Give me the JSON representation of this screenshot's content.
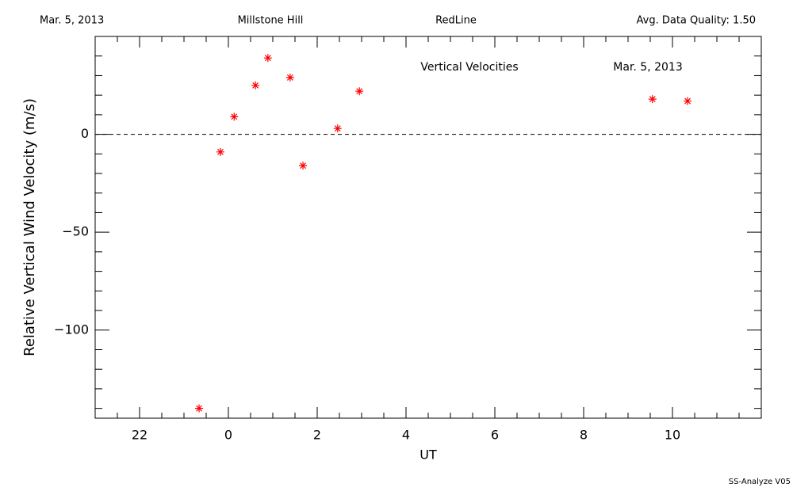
{
  "chart_data": {
    "type": "scatter",
    "header": [
      "Mar. 5, 2013",
      "Millstone Hill",
      "RedLine",
      "Avg. Data Quality: 1.50"
    ],
    "annotations": [
      "Vertical Velocities",
      "Mar. 5, 2013"
    ],
    "xlabel": "UT",
    "ylabel": "Relative Vertical Wind Velocity (m/s)",
    "footer": "SS-Analyze V05",
    "x": [
      -0.66,
      -0.18,
      0.13,
      0.61,
      0.89,
      1.39,
      1.68,
      2.46,
      2.95,
      9.55,
      10.34
    ],
    "values": [
      -140,
      -9,
      9,
      25,
      39,
      29,
      -16,
      3,
      22,
      18,
      17
    ],
    "color": "#ff0000",
    "xlim": [
      -3,
      12
    ],
    "xticks": [
      {
        "value": -2,
        "label": "22"
      },
      0,
      2,
      4,
      6,
      8,
      10
    ],
    "ylim": [
      -145,
      50
    ],
    "yticks": [
      {
        "value": -100,
        "label": "−100"
      },
      {
        "value": -50,
        "label": "−50"
      },
      0
    ],
    "zero_line": true
  }
}
